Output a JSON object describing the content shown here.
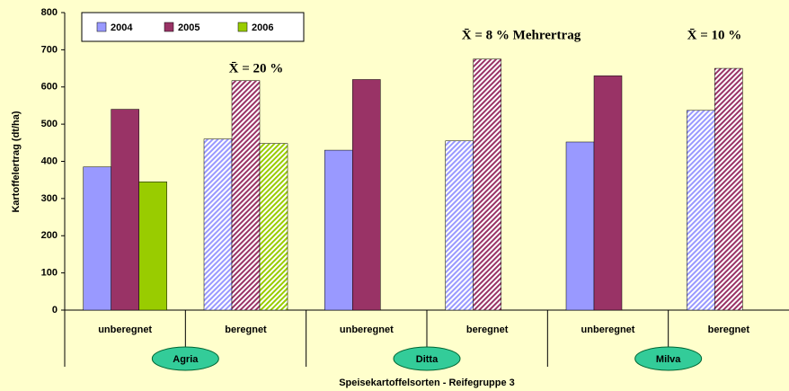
{
  "chart_data": {
    "type": "bar",
    "categories": [
      "unberegnet",
      "beregnet",
      "unberegnet",
      "beregnet",
      "unberegnet",
      "beregnet"
    ],
    "groups": [
      "Agria",
      "Ditta",
      "Milva"
    ],
    "series": [
      {
        "name": "2004",
        "color": "#9999ff",
        "values": [
          385,
          460,
          430,
          455,
          452,
          537
        ]
      },
      {
        "name": "2005",
        "color": "#993366",
        "values": [
          540,
          617,
          620,
          675,
          630,
          650
        ]
      },
      {
        "name": "2006",
        "color": "#99cc00",
        "values": [
          345,
          448,
          null,
          null,
          null,
          null
        ]
      }
    ],
    "ylim": [
      0,
      800
    ],
    "yticks": [
      0,
      100,
      200,
      300,
      400,
      500,
      600,
      700,
      800
    ],
    "y_label": "Kartoffelertrag (dt/ha)",
    "x_label": "Speisekartoffelsorten - Reifegruppe 3",
    "annotations": [
      "X̄ = 20 %",
      "X̄ = 8 % Mehrertrag",
      "X̄ = 10 %"
    ],
    "grid": false
  }
}
